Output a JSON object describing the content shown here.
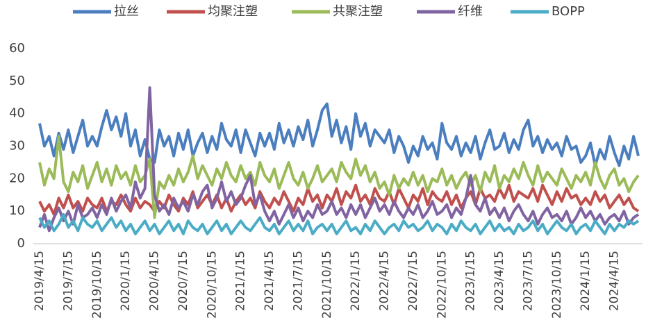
{
  "chart_data": {
    "type": "line",
    "categories": [
      "2019/4/15",
      null,
      null,
      null,
      null,
      null,
      "2019/7/15",
      null,
      null,
      null,
      null,
      null,
      "2019/10/15",
      null,
      null,
      null,
      null,
      null,
      "2020/1/15",
      null,
      null,
      null,
      null,
      null,
      "2020/4/15",
      null,
      null,
      null,
      null,
      null,
      "2020/7/15",
      null,
      null,
      null,
      null,
      null,
      "2020/10/15",
      null,
      null,
      null,
      null,
      null,
      "2021/1/15",
      null,
      null,
      null,
      null,
      null,
      "2021/4/15",
      null,
      null,
      null,
      null,
      null,
      "2021/7/15",
      null,
      null,
      null,
      null,
      null,
      "2021/10/15",
      null,
      null,
      null,
      null,
      null,
      "2022/1/15",
      null,
      null,
      null,
      null,
      null,
      "2022/4/15",
      null,
      null,
      null,
      null,
      null,
      "2022/7/15",
      null,
      null,
      null,
      null,
      null,
      "2022/10/15",
      null,
      null,
      null,
      null,
      null,
      "2023/1/15",
      null,
      null,
      null,
      null,
      null,
      "2023/4/15",
      null,
      null,
      null,
      null,
      null,
      "2023/7/15",
      null,
      null,
      null,
      null,
      null,
      "2023/10/15",
      null,
      null,
      null,
      null,
      null,
      "2024/1/15",
      null,
      null,
      null,
      null,
      null,
      "2024/4/15",
      null,
      null,
      null,
      null,
      null
    ],
    "series": [
      {
        "name": "拉丝",
        "color": "#4a7ebf",
        "values": [
          37,
          30,
          33,
          27,
          34,
          29,
          35,
          28,
          33,
          38,
          30,
          33,
          30,
          36,
          41,
          35,
          39,
          33,
          40,
          30,
          35,
          27,
          32,
          26,
          25,
          35,
          30,
          33,
          27,
          34,
          29,
          35,
          27,
          31,
          34,
          28,
          33,
          29,
          37,
          32,
          30,
          35,
          28,
          35,
          31,
          27,
          34,
          30,
          34,
          29,
          37,
          31,
          35,
          30,
          36,
          32,
          38,
          30,
          35,
          41,
          43,
          33,
          38,
          31,
          36,
          29,
          40,
          33,
          37,
          30,
          35,
          33,
          31,
          35,
          28,
          33,
          30,
          25,
          30,
          27,
          33,
          29,
          31,
          26,
          37,
          31,
          29,
          33,
          27,
          31,
          28,
          33,
          26,
          31,
          35,
          29,
          30,
          34,
          28,
          32,
          29,
          35,
          38,
          30,
          33,
          28,
          32,
          29,
          31,
          27,
          33,
          29,
          30,
          25,
          27,
          31,
          24,
          29,
          26,
          33,
          28,
          24,
          30,
          26,
          33,
          27
        ]
      },
      {
        "name": "均聚注塑",
        "color": "#c0504d",
        "values": [
          13,
          10,
          12,
          9,
          14,
          11,
          15,
          11,
          13,
          10,
          14,
          12,
          11,
          14,
          10,
          13,
          12,
          15,
          12,
          10,
          14,
          11,
          13,
          12,
          10,
          13,
          11,
          15,
          12,
          10,
          14,
          12,
          16,
          11,
          13,
          15,
          12,
          15,
          11,
          14,
          10,
          13,
          15,
          12,
          14,
          11,
          16,
          13,
          11,
          14,
          12,
          16,
          13,
          10,
          14,
          12,
          17,
          13,
          15,
          11,
          15,
          13,
          17,
          12,
          16,
          14,
          18,
          13,
          15,
          12,
          17,
          14,
          13,
          16,
          12,
          17,
          14,
          11,
          15,
          13,
          17,
          12,
          16,
          14,
          13,
          16,
          12,
          15,
          11,
          14,
          16,
          12,
          17,
          14,
          15,
          13,
          17,
          14,
          18,
          13,
          16,
          15,
          14,
          17,
          13,
          18,
          15,
          12,
          16,
          13,
          17,
          14,
          15,
          12,
          14,
          12,
          16,
          13,
          15,
          11,
          13,
          15,
          12,
          14,
          11,
          10
        ]
      },
      {
        "name": "共聚注塑",
        "color": "#9bbb59",
        "values": [
          25,
          18,
          23,
          20,
          33,
          19,
          16,
          22,
          19,
          24,
          17,
          21,
          25,
          19,
          23,
          18,
          24,
          20,
          22,
          18,
          24,
          19,
          21,
          26,
          8,
          19,
          17,
          21,
          18,
          23,
          19,
          22,
          27,
          20,
          24,
          21,
          18,
          23,
          20,
          25,
          21,
          19,
          24,
          20,
          22,
          18,
          25,
          21,
          19,
          23,
          17,
          21,
          25,
          20,
          18,
          22,
          17,
          20,
          24,
          19,
          21,
          23,
          19,
          25,
          22,
          20,
          26,
          21,
          24,
          19,
          22,
          17,
          19,
          15,
          21,
          17,
          20,
          18,
          22,
          18,
          21,
          16,
          20,
          19,
          23,
          18,
          21,
          17,
          20,
          22,
          18,
          21,
          16,
          22,
          19,
          24,
          17,
          21,
          19,
          23,
          20,
          25,
          21,
          18,
          24,
          19,
          22,
          20,
          18,
          23,
          20,
          17,
          21,
          19,
          22,
          18,
          25,
          20,
          17,
          21,
          23,
          18,
          20,
          16,
          19,
          21
        ]
      },
      {
        "name": "纤维",
        "color": "#8064a2",
        "values": [
          5,
          9,
          4,
          8,
          11,
          7,
          10,
          6,
          12,
          8,
          9,
          11,
          8,
          12,
          9,
          14,
          10,
          13,
          15,
          11,
          19,
          14,
          17,
          48,
          15,
          10,
          12,
          9,
          14,
          11,
          13,
          10,
          15,
          12,
          16,
          18,
          11,
          14,
          19,
          13,
          16,
          12,
          14,
          18,
          21,
          12,
          15,
          10,
          7,
          10,
          6,
          9,
          12,
          8,
          11,
          7,
          10,
          8,
          12,
          9,
          10,
          13,
          9,
          11,
          8,
          12,
          9,
          12,
          8,
          11,
          14,
          10,
          12,
          9,
          13,
          10,
          8,
          11,
          9,
          12,
          8,
          10,
          13,
          9,
          10,
          12,
          8,
          11,
          9,
          14,
          21,
          12,
          10,
          14,
          9,
          11,
          8,
          11,
          7,
          10,
          12,
          9,
          7,
          10,
          6,
          9,
          11,
          8,
          9,
          7,
          10,
          6,
          8,
          11,
          8,
          10,
          7,
          9,
          6,
          8,
          9,
          7,
          10,
          6,
          8,
          9
        ]
      },
      {
        "name": "BOPP",
        "color": "#4bacc6",
        "values": [
          8,
          5,
          7,
          4,
          6,
          9,
          5,
          7,
          4,
          8,
          6,
          5,
          7,
          4,
          6,
          8,
          5,
          7,
          4,
          6,
          3,
          5,
          7,
          4,
          6,
          3,
          5,
          7,
          4,
          6,
          3,
          7,
          5,
          4,
          6,
          3,
          5,
          7,
          4,
          6,
          3,
          5,
          7,
          5,
          4,
          6,
          8,
          5,
          4,
          6,
          3,
          5,
          7,
          4,
          6,
          4,
          7,
          3,
          5,
          6,
          4,
          6,
          3,
          5,
          7,
          4,
          5,
          3,
          6,
          4,
          7,
          5,
          3,
          5,
          6,
          4,
          7,
          5,
          6,
          4,
          5,
          7,
          4,
          6,
          5,
          3,
          6,
          4,
          7,
          5,
          4,
          6,
          3,
          5,
          7,
          4,
          6,
          4,
          5,
          3,
          6,
          4,
          5,
          7,
          4,
          6,
          3,
          5,
          7,
          5,
          4,
          6,
          3,
          5,
          6,
          4,
          7,
          5,
          3,
          6,
          4,
          6,
          5,
          7,
          6,
          7
        ]
      }
    ],
    "ylim": [
      0,
      60
    ],
    "yticks": [
      0,
      10,
      20,
      30,
      40,
      50,
      60
    ],
    "legend": "top"
  }
}
